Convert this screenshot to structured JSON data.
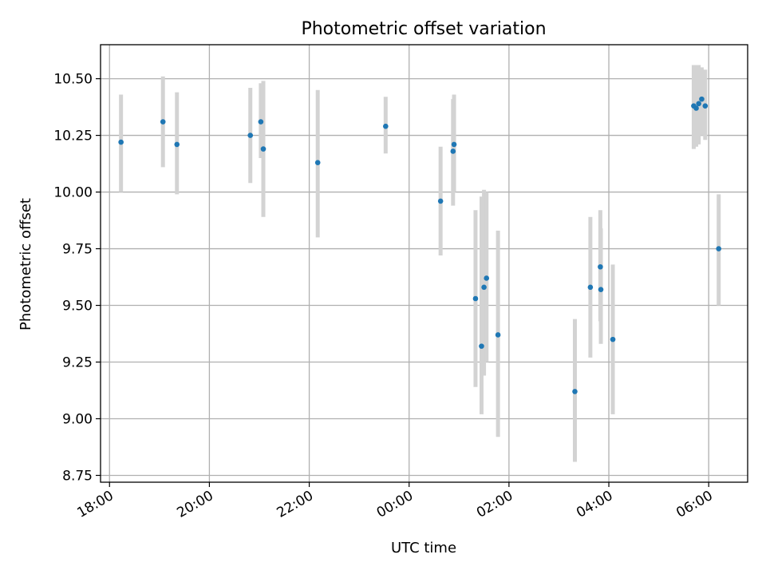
{
  "chart_data": {
    "type": "scatter",
    "title": "Photometric offset variation",
    "xlabel": "UTC time",
    "ylabel": "Photometric offset",
    "x_unit": "hours after 18:00 UTC (first day)",
    "xlim": [
      -0.18,
      12.78
    ],
    "ylim": [
      8.72,
      10.65
    ],
    "x_ticks": [
      0,
      2,
      4,
      6,
      8,
      10,
      12
    ],
    "x_tick_labels": [
      "18:00",
      "20:00",
      "22:00",
      "00:00",
      "02:00",
      "04:00",
      "06:00"
    ],
    "y_ticks": [
      8.75,
      9.0,
      9.25,
      9.5,
      9.75,
      10.0,
      10.25,
      10.5
    ],
    "y_tick_labels": [
      "8.75",
      "9.00",
      "9.25",
      "9.50",
      "9.75",
      "10.00",
      "10.25",
      "10.50"
    ],
    "grid": true,
    "colors": {
      "point": "#1f77b4",
      "errorbar": "#d3d3d3",
      "grid": "#b0b0b0",
      "axes": "#000000"
    },
    "points": [
      {
        "x": 0.23,
        "y": 10.22,
        "yerr_low": 10.0,
        "yerr_high": 10.43
      },
      {
        "x": 1.07,
        "y": 10.31,
        "yerr_low": 10.11,
        "yerr_high": 10.51
      },
      {
        "x": 1.35,
        "y": 10.21,
        "yerr_low": 9.99,
        "yerr_high": 10.44
      },
      {
        "x": 2.82,
        "y": 10.25,
        "yerr_low": 10.04,
        "yerr_high": 10.46
      },
      {
        "x": 3.03,
        "y": 10.31,
        "yerr_low": 10.15,
        "yerr_high": 10.48
      },
      {
        "x": 3.08,
        "y": 10.19,
        "yerr_low": 9.89,
        "yerr_high": 10.49
      },
      {
        "x": 4.17,
        "y": 10.13,
        "yerr_low": 9.8,
        "yerr_high": 10.45
      },
      {
        "x": 5.53,
        "y": 10.29,
        "yerr_low": 10.17,
        "yerr_high": 10.42
      },
      {
        "x": 6.63,
        "y": 9.96,
        "yerr_low": 9.72,
        "yerr_high": 10.2
      },
      {
        "x": 6.88,
        "y": 10.18,
        "yerr_low": 9.94,
        "yerr_high": 10.41
      },
      {
        "x": 6.9,
        "y": 10.21,
        "yerr_low": 10.0,
        "yerr_high": 10.43
      },
      {
        "x": 7.33,
        "y": 9.53,
        "yerr_low": 9.14,
        "yerr_high": 9.92
      },
      {
        "x": 7.45,
        "y": 9.32,
        "yerr_low": 9.02,
        "yerr_high": 9.98
      },
      {
        "x": 7.5,
        "y": 9.58,
        "yerr_low": 9.19,
        "yerr_high": 10.01
      },
      {
        "x": 7.55,
        "y": 9.62,
        "yerr_low": 9.25,
        "yerr_high": 10.0
      },
      {
        "x": 7.78,
        "y": 9.37,
        "yerr_low": 8.92,
        "yerr_high": 9.83
      },
      {
        "x": 9.32,
        "y": 9.12,
        "yerr_low": 8.81,
        "yerr_high": 9.44
      },
      {
        "x": 9.63,
        "y": 9.58,
        "yerr_low": 9.27,
        "yerr_high": 9.89
      },
      {
        "x": 9.83,
        "y": 9.67,
        "yerr_low": 9.43,
        "yerr_high": 9.92
      },
      {
        "x": 9.84,
        "y": 9.57,
        "yerr_low": 9.33,
        "yerr_high": 9.84
      },
      {
        "x": 10.08,
        "y": 9.35,
        "yerr_low": 9.02,
        "yerr_high": 9.68
      },
      {
        "x": 11.7,
        "y": 10.38,
        "yerr_low": 10.19,
        "yerr_high": 10.56
      },
      {
        "x": 11.75,
        "y": 10.37,
        "yerr_low": 10.2,
        "yerr_high": 10.56
      },
      {
        "x": 11.8,
        "y": 10.39,
        "yerr_low": 10.21,
        "yerr_high": 10.56
      },
      {
        "x": 11.86,
        "y": 10.41,
        "yerr_low": 10.25,
        "yerr_high": 10.55
      },
      {
        "x": 11.93,
        "y": 10.38,
        "yerr_low": 10.23,
        "yerr_high": 10.54
      },
      {
        "x": 12.2,
        "y": 9.75,
        "yerr_low": 9.5,
        "yerr_high": 9.99
      }
    ]
  }
}
